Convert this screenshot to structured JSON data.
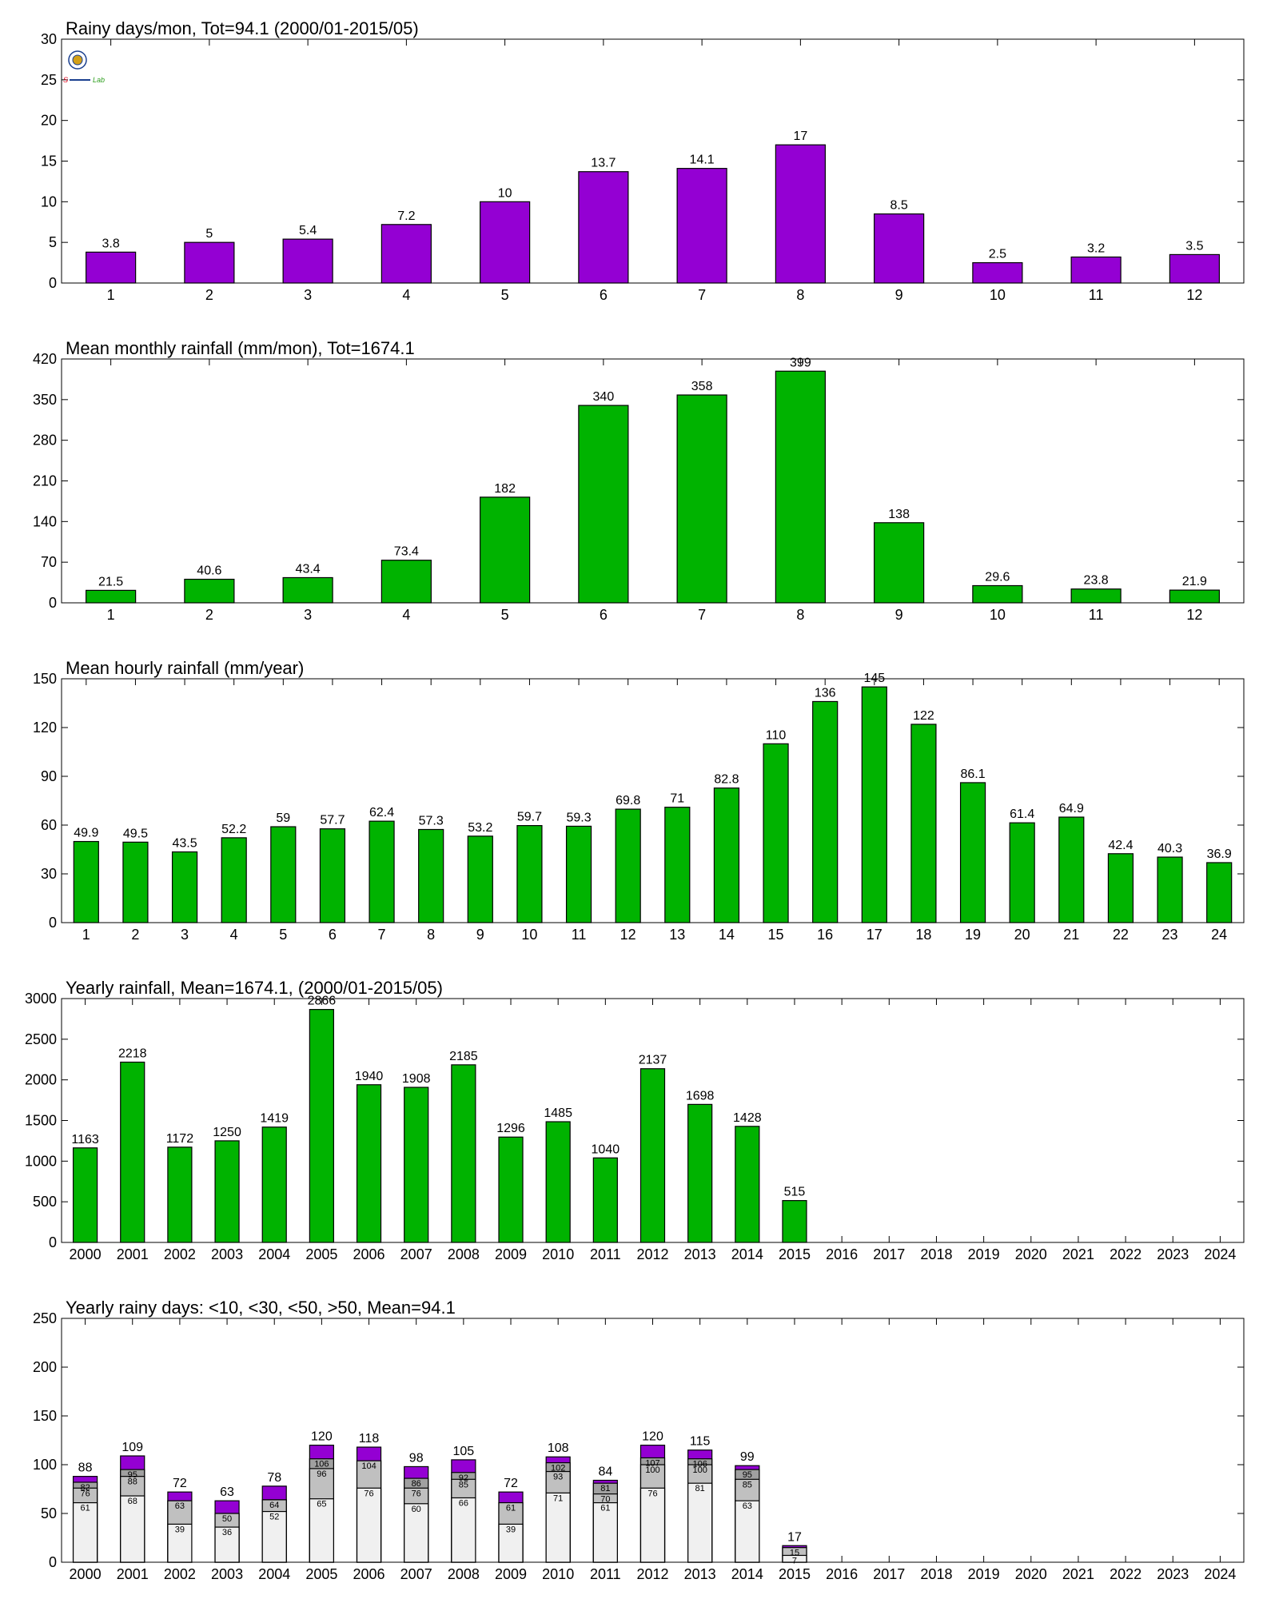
{
  "colors": {
    "purple": "#9400d3",
    "green": "#00b300",
    "light_gray": "#f0f0f0",
    "mid_gray": "#c0c0c0",
    "dark_gray": "#a0a0a0",
    "axis": "#000000"
  },
  "logo": {
    "text_left": "S",
    "text_right": "Lab",
    "icon": "lab-seal-logo"
  },
  "chart_data": [
    {
      "type": "bar",
      "title": "Rainy days/mon, Tot=94.1 (2000/01-2015/05)",
      "categories": [
        "1",
        "2",
        "3",
        "4",
        "5",
        "6",
        "7",
        "8",
        "9",
        "10",
        "11",
        "12"
      ],
      "values": [
        3.8,
        5,
        5.4,
        7.2,
        10,
        13.7,
        14.1,
        17,
        8.5,
        2.5,
        3.2,
        3.5
      ],
      "value_labels": [
        "3.8",
        "5",
        "5.4",
        "7.2",
        "10",
        "13.7",
        "14.1",
        "17",
        "8.5",
        "2.5",
        "3.2",
        "3.5"
      ],
      "ylim": [
        0,
        30
      ],
      "yticks": [
        0,
        5,
        10,
        15,
        20,
        25,
        30
      ],
      "color": "purple"
    },
    {
      "type": "bar",
      "title": "Mean monthly rainfall (mm/mon), Tot=1674.1",
      "categories": [
        "1",
        "2",
        "3",
        "4",
        "5",
        "6",
        "7",
        "8",
        "9",
        "10",
        "11",
        "12"
      ],
      "values": [
        21.5,
        40.6,
        43.4,
        73.4,
        182,
        340,
        358,
        399,
        138,
        29.6,
        23.8,
        21.9
      ],
      "value_labels": [
        "21.5",
        "40.6",
        "43.4",
        "73.4",
        "182",
        "340",
        "358",
        "399",
        "138",
        "29.6",
        "23.8",
        "21.9"
      ],
      "ylim": [
        0,
        420
      ],
      "yticks": [
        0,
        70,
        140,
        210,
        280,
        350,
        420
      ],
      "color": "green"
    },
    {
      "type": "bar",
      "title": "Mean hourly rainfall (mm/year)",
      "categories": [
        "1",
        "2",
        "3",
        "4",
        "5",
        "6",
        "7",
        "8",
        "9",
        "10",
        "11",
        "12",
        "13",
        "14",
        "15",
        "16",
        "17",
        "18",
        "19",
        "20",
        "21",
        "22",
        "23",
        "24"
      ],
      "values": [
        49.9,
        49.5,
        43.5,
        52.2,
        59,
        57.7,
        62.4,
        57.3,
        53.2,
        59.7,
        59.3,
        69.8,
        71,
        82.8,
        110,
        136,
        145,
        122,
        86.1,
        61.4,
        64.9,
        42.4,
        40.3,
        36.9
      ],
      "value_labels": [
        "49.9",
        "49.5",
        "43.5",
        "52.2",
        "59",
        "57.7",
        "62.4",
        "57.3",
        "53.2",
        "59.7",
        "59.3",
        "69.8",
        "71",
        "82.8",
        "110",
        "136",
        "145",
        "122",
        "86.1",
        "61.4",
        "64.9",
        "42.4",
        "40.3",
        "36.9"
      ],
      "ylim": [
        0,
        150
      ],
      "yticks": [
        0,
        30,
        60,
        90,
        120,
        150
      ],
      "color": "green"
    },
    {
      "type": "bar",
      "title": "Yearly rainfall, Mean=1674.1, (2000/01-2015/05)",
      "categories": [
        "2000",
        "2001",
        "2002",
        "2003",
        "2004",
        "2005",
        "2006",
        "2007",
        "2008",
        "2009",
        "2010",
        "2011",
        "2012",
        "2013",
        "2014",
        "2015",
        "2016",
        "2017",
        "2018",
        "2019",
        "2020",
        "2021",
        "2022",
        "2023",
        "2024"
      ],
      "values": [
        1163,
        2218,
        1172,
        1250,
        1419,
        2866,
        1940,
        1908,
        2185,
        1296,
        1485,
        1040,
        2137,
        1698,
        1428,
        515,
        null,
        null,
        null,
        null,
        null,
        null,
        null,
        null,
        null
      ],
      "value_labels": [
        "1163",
        "2218",
        "1172",
        "1250",
        "1419",
        "2866",
        "1940",
        "1908",
        "2185",
        "1296",
        "1485",
        "1040",
        "2137",
        "1698",
        "1428",
        "515",
        "",
        "",
        "",
        "",
        "",
        "",
        "",
        "",
        ""
      ],
      "ylim": [
        0,
        3000
      ],
      "yticks": [
        0,
        500,
        1000,
        1500,
        2000,
        2500,
        3000
      ],
      "color": "green"
    },
    {
      "type": "bar",
      "stacked_cumulative": true,
      "title": "Yearly rainy days: <10, <30, <50, >50, Mean=94.1",
      "categories": [
        "2000",
        "2001",
        "2002",
        "2003",
        "2004",
        "2005",
        "2006",
        "2007",
        "2008",
        "2009",
        "2010",
        "2011",
        "2012",
        "2013",
        "2014",
        "2015",
        "2016",
        "2017",
        "2018",
        "2019",
        "2020",
        "2021",
        "2022",
        "2023",
        "2024"
      ],
      "ylim": [
        0,
        250
      ],
      "yticks": [
        0,
        50,
        100,
        150,
        200,
        250
      ],
      "series": [
        {
          "color": "light_gray",
          "values": [
            61,
            68,
            39,
            36,
            52,
            65,
            76,
            60,
            66,
            39,
            71,
            61,
            76,
            81,
            63,
            7,
            null,
            null,
            null,
            null,
            null,
            null,
            null,
            null,
            null
          ],
          "labels": [
            "61",
            "68",
            "39",
            "36",
            "52",
            "65",
            "76",
            "60",
            "66",
            "39",
            "71",
            "61",
            "76",
            "81",
            "63",
            "7",
            "",
            "",
            "",
            "",
            "",
            "",
            "",
            "",
            ""
          ]
        },
        {
          "color": "mid_gray",
          "values": [
            76,
            88,
            63,
            50,
            64,
            96,
            104,
            76,
            85,
            61,
            93,
            70,
            100,
            100,
            85,
            15,
            null,
            null,
            null,
            null,
            null,
            null,
            null,
            null,
            null
          ],
          "labels": [
            "76",
            "88",
            "63",
            "50",
            "64",
            "96",
            "104",
            "76",
            "85",
            "61",
            "93",
            "70",
            "100",
            "100",
            "85",
            "15",
            "",
            "",
            "",
            "",
            "",
            "",
            "",
            "",
            ""
          ]
        },
        {
          "color": "dark_gray",
          "values": [
            82,
            95,
            63,
            50,
            64,
            106,
            104,
            86,
            92,
            61,
            102,
            81,
            107,
            106,
            95,
            15,
            null,
            null,
            null,
            null,
            null,
            null,
            null,
            null,
            null
          ],
          "labels": [
            "82",
            "95",
            "",
            "",
            "",
            "106",
            "",
            "86",
            "92",
            "",
            "102",
            "81",
            "107",
            "106",
            "95",
            "",
            "",
            "",
            "",
            "",
            "",
            "",
            "",
            "",
            ""
          ]
        },
        {
          "color": "purple",
          "values": [
            88,
            109,
            72,
            63,
            78,
            120,
            118,
            98,
            105,
            72,
            108,
            84,
            120,
            115,
            99,
            17,
            null,
            null,
            null,
            null,
            null,
            null,
            null,
            null,
            null
          ],
          "labels": [
            "88",
            "109",
            "72",
            "63",
            "78",
            "120",
            "118",
            "98",
            "105",
            "72",
            "108",
            "84",
            "120",
            "115",
            "99",
            "17",
            "",
            "",
            "",
            "",
            "",
            "",
            "",
            "",
            ""
          ]
        }
      ]
    }
  ]
}
